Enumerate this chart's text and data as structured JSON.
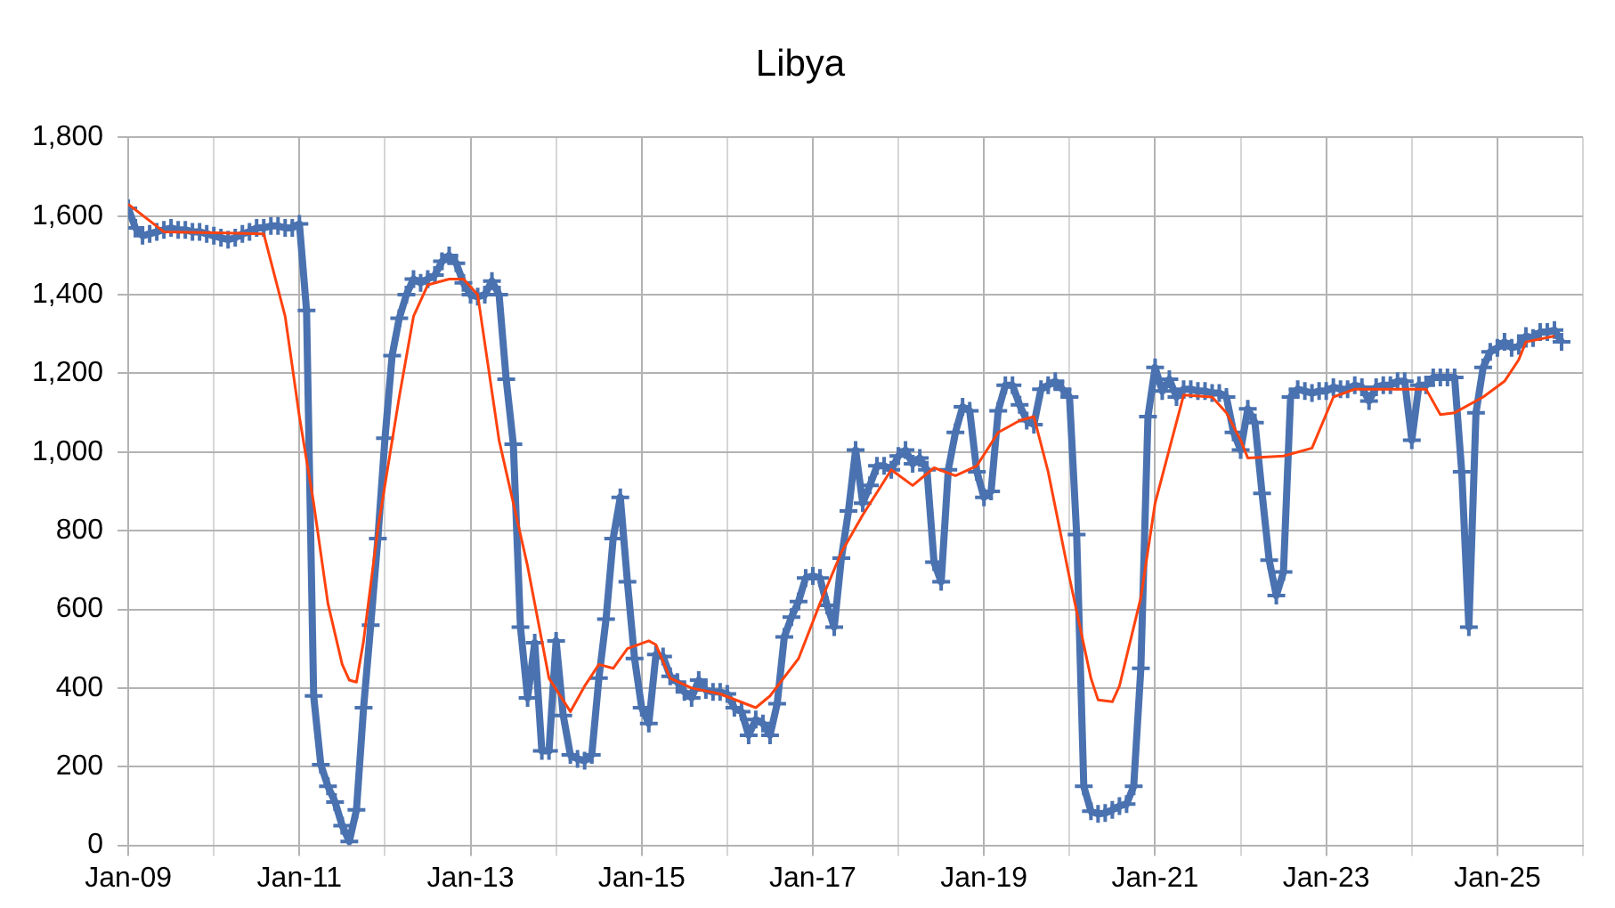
{
  "chart_data": {
    "type": "line",
    "title": "Libya",
    "x": [
      "2009-01",
      "2009-02",
      "2009-03",
      "2009-04",
      "2009-05",
      "2009-06",
      "2009-07",
      "2009-08",
      "2009-09",
      "2009-10",
      "2009-11",
      "2009-12",
      "2010-01",
      "2010-02",
      "2010-03",
      "2010-04",
      "2010-05",
      "2010-06",
      "2010-07",
      "2010-08",
      "2010-09",
      "2010-10",
      "2010-11",
      "2010-12",
      "2011-01",
      "2011-02",
      "2011-03",
      "2011-04",
      "2011-05",
      "2011-06",
      "2011-07",
      "2011-08",
      "2011-09",
      "2011-10",
      "2011-11",
      "2011-12",
      "2012-01",
      "2012-02",
      "2012-03",
      "2012-04",
      "2012-05",
      "2012-06",
      "2012-07",
      "2012-08",
      "2012-09",
      "2012-10",
      "2012-11",
      "2012-12",
      "2013-01",
      "2013-02",
      "2013-03",
      "2013-04",
      "2013-05",
      "2013-06",
      "2013-07",
      "2013-08",
      "2013-09",
      "2013-10",
      "2013-11",
      "2013-12",
      "2014-01",
      "2014-02",
      "2014-03",
      "2014-04",
      "2014-05",
      "2014-06",
      "2014-07",
      "2014-08",
      "2014-09",
      "2014-10",
      "2014-11",
      "2014-12",
      "2015-01",
      "2015-02",
      "2015-03",
      "2015-04",
      "2015-05",
      "2015-06",
      "2015-07",
      "2015-08",
      "2015-09",
      "2015-10",
      "2015-11",
      "2015-12",
      "2016-01",
      "2016-02",
      "2016-03",
      "2016-04",
      "2016-05",
      "2016-06",
      "2016-07",
      "2016-08",
      "2016-09",
      "2016-10",
      "2016-11",
      "2016-12",
      "2017-01",
      "2017-02",
      "2017-03",
      "2017-04",
      "2017-05",
      "2017-06",
      "2017-07",
      "2017-08",
      "2017-09",
      "2017-10",
      "2017-11",
      "2017-12",
      "2018-01",
      "2018-02",
      "2018-03",
      "2018-04",
      "2018-05",
      "2018-06",
      "2018-07",
      "2018-08",
      "2018-09",
      "2018-10",
      "2018-11",
      "2018-12",
      "2019-01",
      "2019-02",
      "2019-03",
      "2019-04",
      "2019-05",
      "2019-06",
      "2019-07",
      "2019-08",
      "2019-09",
      "2019-10",
      "2019-11",
      "2019-12",
      "2020-01",
      "2020-02",
      "2020-03",
      "2020-04",
      "2020-05",
      "2020-06",
      "2020-07",
      "2020-08",
      "2020-09",
      "2020-10",
      "2020-11",
      "2020-12",
      "2021-01",
      "2021-02",
      "2021-03",
      "2021-04",
      "2021-05",
      "2021-06",
      "2021-07",
      "2021-08",
      "2021-09",
      "2021-10",
      "2021-11",
      "2021-12",
      "2022-01",
      "2022-02",
      "2022-03",
      "2022-04",
      "2022-05",
      "2022-06",
      "2022-07",
      "2022-08",
      "2022-09",
      "2022-10",
      "2022-11",
      "2022-12",
      "2023-01",
      "2023-02",
      "2023-03",
      "2023-04",
      "2023-05",
      "2023-06",
      "2023-07",
      "2023-08",
      "2023-09",
      "2023-10",
      "2023-11",
      "2023-12",
      "2024-01",
      "2024-02",
      "2024-03",
      "2024-04",
      "2024-05",
      "2024-06",
      "2024-07",
      "2024-08",
      "2024-09",
      "2024-10",
      "2024-11",
      "2024-12",
      "2025-01",
      "2025-02",
      "2025-03",
      "2025-04",
      "2025-05",
      "2025-06",
      "2025-07",
      "2025-08",
      "2025-09",
      "2025-10"
    ],
    "series": [
      {
        "color": "#4a72b0",
        "marker": "cross",
        "values": [
          1620,
          1570,
          1550,
          1555,
          1560,
          1565,
          1570,
          1565,
          1565,
          1560,
          1560,
          1555,
          1550,
          1545,
          1540,
          1545,
          1555,
          1560,
          1570,
          1570,
          1575,
          1575,
          1570,
          1570,
          1580,
          1360,
          380,
          205,
          150,
          110,
          50,
          10,
          90,
          350,
          560,
          780,
          1035,
          1245,
          1340,
          1400,
          1440,
          1430,
          1440,
          1450,
          1485,
          1500,
          1480,
          1430,
          1400,
          1395,
          1400,
          1435,
          1400,
          1185,
          1020,
          555,
          375,
          515,
          240,
          240,
          520,
          330,
          230,
          220,
          215,
          230,
          425,
          575,
          780,
          885,
          670,
          475,
          350,
          310,
          485,
          480,
          430,
          415,
          390,
          375,
          420,
          395,
          390,
          390,
          385,
          350,
          340,
          280,
          320,
          310,
          280,
          360,
          530,
          580,
          620,
          680,
          685,
          680,
          610,
          555,
          730,
          850,
          1005,
          870,
          915,
          965,
          965,
          955,
          990,
          1005,
          970,
          985,
          955,
          720,
          670,
          955,
          1050,
          1115,
          1105,
          950,
          885,
          900,
          1105,
          1170,
          1170,
          1120,
          1080,
          1070,
          1160,
          1170,
          1180,
          1160,
          1140,
          790,
          150,
          87,
          80,
          82,
          90,
          100,
          105,
          150,
          450,
          1090,
          1215,
          1155,
          1185,
          1140,
          1160,
          1160,
          1155,
          1155,
          1150,
          1150,
          1140,
          1050,
          1005,
          1110,
          1075,
          895,
          725,
          635,
          695,
          1140,
          1160,
          1155,
          1150,
          1155,
          1155,
          1165,
          1160,
          1160,
          1170,
          1165,
          1130,
          1165,
          1170,
          1170,
          1180,
          1180,
          1030,
          1170,
          1170,
          1190,
          1190,
          1190,
          1190,
          950,
          555,
          1100,
          1215,
          1255,
          1265,
          1280,
          1265,
          1270,
          1295,
          1290,
          1305,
          1305,
          1310,
          1280
        ]
      },
      {
        "color": "#ff420e",
        "marker": "none",
        "x": [
          "2009-01",
          "2009-06",
          "2010-08",
          "2010-11",
          "2011-01",
          "2011-03",
          "2011-05",
          "2011-07",
          "2011-08",
          "2011-09",
          "2011-10",
          "2011-12",
          "2012-03",
          "2012-05",
          "2012-07",
          "2012-10",
          "2012-12",
          "2013-02",
          "2013-05",
          "2013-09",
          "2013-12",
          "2014-03",
          "2014-05",
          "2014-07",
          "2014-09",
          "2014-11",
          "2015-02",
          "2015-03",
          "2015-05",
          "2015-08",
          "2015-12",
          "2016-05",
          "2016-07",
          "2016-11",
          "2017-02",
          "2017-05",
          "2017-08",
          "2017-12",
          "2018-03",
          "2018-06",
          "2018-09",
          "2018-12",
          "2019-03",
          "2019-06",
          "2019-08",
          "2019-10",
          "2020-01",
          "2020-04",
          "2020-05",
          "2020-07",
          "2020-08",
          "2020-11",
          "2021-01",
          "2021-05",
          "2021-09",
          "2021-11",
          "2022-01",
          "2022-02",
          "2022-07",
          "2022-11",
          "2023-02",
          "2023-05",
          "2024-01",
          "2024-03",
          "2024-05",
          "2024-07",
          "2024-11",
          "2025-02",
          "2025-04",
          "2025-05",
          "2025-09"
        ],
        "values": [
          1630,
          1560,
          1555,
          1345,
          1090,
          870,
          615,
          460,
          420,
          415,
          520,
          805,
          1140,
          1345,
          1425,
          1440,
          1440,
          1400,
          1030,
          710,
          425,
          340,
          405,
          460,
          450,
          500,
          520,
          510,
          425,
          400,
          385,
          350,
          380,
          475,
          615,
          745,
          840,
          955,
          915,
          960,
          940,
          965,
          1050,
          1080,
          1090,
          950,
          680,
          425,
          370,
          365,
          405,
          630,
          870,
          1145,
          1140,
          1100,
          1030,
          985,
          990,
          1010,
          1140,
          1160,
          1160,
          1160,
          1095,
          1100,
          1140,
          1180,
          1235,
          1280,
          1295
        ]
      }
    ],
    "xlim": [
      "2009-01",
      "2026-01"
    ],
    "xticks": [
      {
        "value": "2009-01",
        "label": "Jan-09"
      },
      {
        "value": "2010-01",
        "label": null
      },
      {
        "value": "2011-01",
        "label": "Jan-11"
      },
      {
        "value": "2012-01",
        "label": null
      },
      {
        "value": "2013-01",
        "label": "Jan-13"
      },
      {
        "value": "2014-01",
        "label": null
      },
      {
        "value": "2015-01",
        "label": "Jan-15"
      },
      {
        "value": "2016-01",
        "label": null
      },
      {
        "value": "2017-01",
        "label": "Jan-17"
      },
      {
        "value": "2018-01",
        "label": null
      },
      {
        "value": "2019-01",
        "label": "Jan-19"
      },
      {
        "value": "2020-01",
        "label": null
      },
      {
        "value": "2021-01",
        "label": "Jan-21"
      },
      {
        "value": "2022-01",
        "label": null
      },
      {
        "value": "2023-01",
        "label": "Jan-23"
      },
      {
        "value": "2024-01",
        "label": null
      },
      {
        "value": "2025-01",
        "label": "Jan-25"
      },
      {
        "value": "2026-01",
        "label": null
      }
    ],
    "ylim": [
      0,
      1800
    ],
    "yticks": [
      0,
      200,
      400,
      600,
      800,
      {
        "value": 1000,
        "label": "1,000"
      },
      {
        "value": 1200,
        "label": "1,200"
      },
      {
        "value": 1400,
        "label": "1,400"
      },
      {
        "value": 1600,
        "label": "1,600"
      },
      {
        "value": 1800,
        "label": "1,800"
      }
    ],
    "grid": true,
    "legend": false
  }
}
